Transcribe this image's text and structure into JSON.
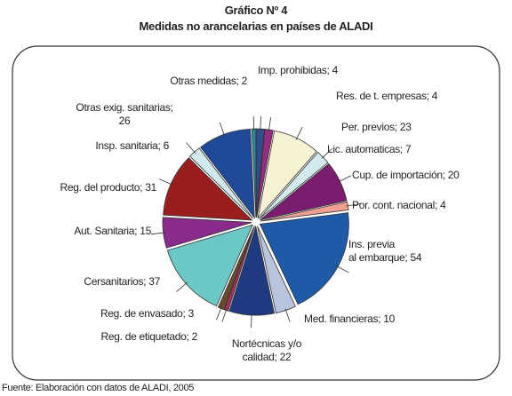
{
  "chart_data": {
    "type": "pie",
    "title": "Gráfico Nº 4",
    "subtitle": "Medidas no arancelarias en países de ALADI",
    "source": "Fuente: Elaboración con datos de ALADI, 2005",
    "labels": [
      "Imp. prohibidas; 4",
      "Res. de t. empresas; 4",
      "Per. previos; 23",
      "Lic. automaticas; 7",
      "Cup. de importación; 20",
      "Por. cont.  nacional; 4",
      "Ins.  previa\nal embarque; 54",
      "Med. financieras; 10",
      "Nortécnicas y/o\ncalidad; 22",
      "Reg. de etiquetado; 2",
      "Reg. de envasado; 3",
      "Cersanitarios; 37",
      "Aut. Sanitaria; 15",
      "Reg. del producto; 31",
      "Insp. sanitaria; 6",
      "Otras exig. sanitarias;\n26",
      "Otras medidas; 2"
    ],
    "values": [
      4,
      4,
      23,
      7,
      20,
      4,
      54,
      10,
      22,
      2,
      3,
      37,
      15,
      31,
      6,
      26,
      2
    ],
    "colors": [
      "#2e4e8e",
      "#9a2a80",
      "#f6f2d4",
      "#d2eaee",
      "#7a1d6e",
      "#f0a090",
      "#1e5aa8",
      "#b8c4dc",
      "#1e3a80",
      "#a0305a",
      "#6a4a2a",
      "#6cc8c4",
      "#8a2a8a",
      "#9a1e1e",
      "#d2eaee",
      "#1e4a98",
      "#2a8aa0"
    ]
  }
}
